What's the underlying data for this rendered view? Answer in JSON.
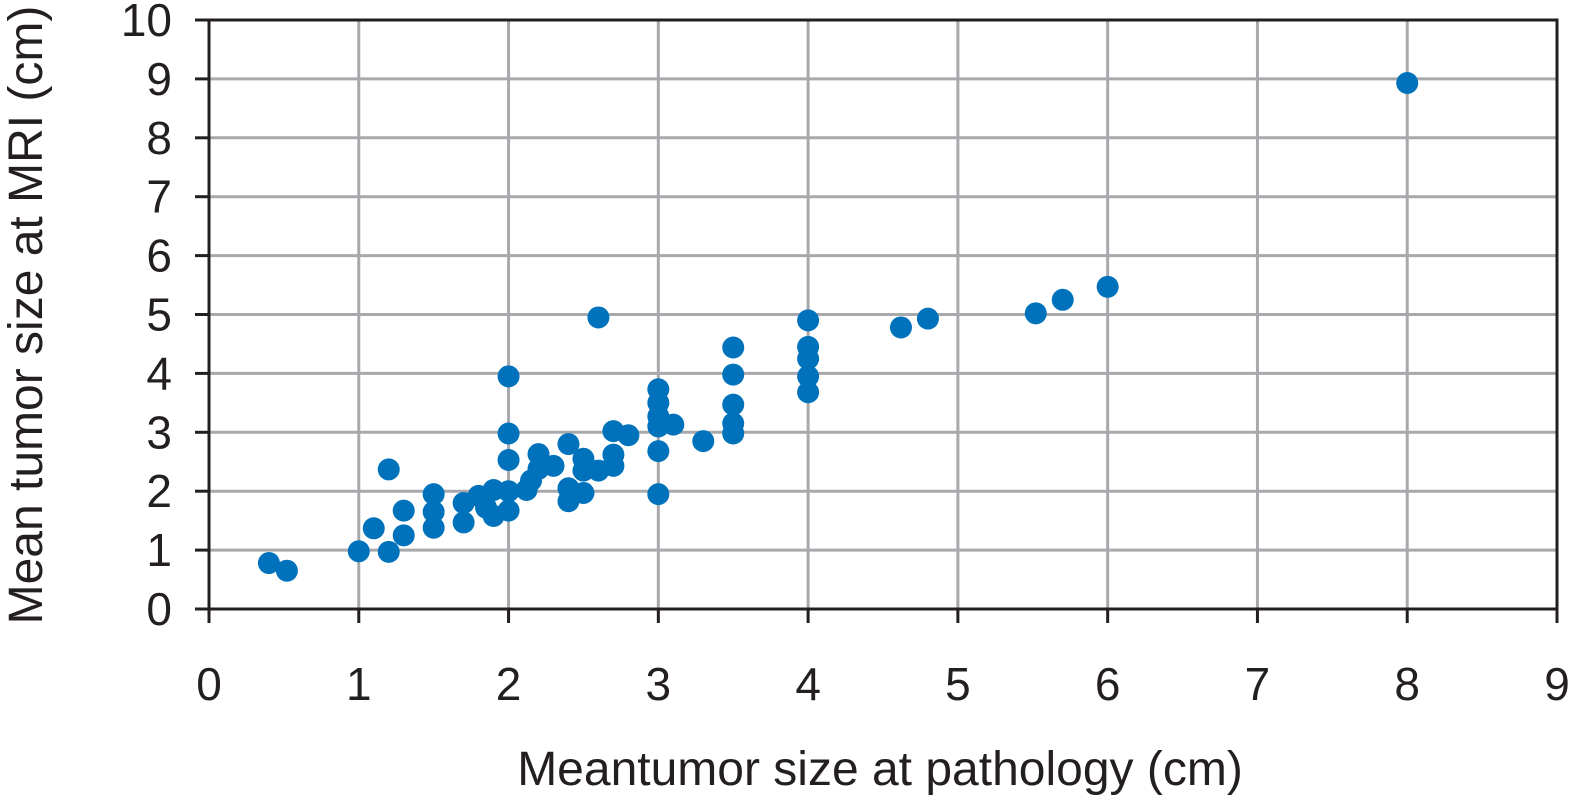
{
  "colors": {
    "point": "#0072bc",
    "grid": "#a7a9ac",
    "axis": "#231f20"
  },
  "chart_data": {
    "type": "scatter",
    "title": "",
    "xlabel": "Meantumor size at pathology (cm)",
    "ylabel": "Mean tumor size at MRI (cm)",
    "xlim": [
      0,
      9
    ],
    "ylim": [
      0,
      10
    ],
    "xticks": [
      0,
      1,
      2,
      3,
      4,
      5,
      6,
      7,
      8,
      9
    ],
    "yticks": [
      0,
      1,
      2,
      3,
      4,
      5,
      6,
      7,
      8,
      9,
      10
    ],
    "grid": true,
    "legend": "none",
    "series": [
      {
        "points": [
          [
            0.4,
            0.78
          ],
          [
            0.52,
            0.65
          ],
          [
            1.0,
            0.98
          ],
          [
            1.1,
            1.37
          ],
          [
            1.2,
            0.97
          ],
          [
            1.2,
            2.37
          ],
          [
            1.3,
            1.67
          ],
          [
            1.3,
            1.25
          ],
          [
            1.5,
            1.95
          ],
          [
            1.5,
            1.65
          ],
          [
            1.5,
            1.38
          ],
          [
            1.7,
            1.8
          ],
          [
            1.7,
            1.47
          ],
          [
            1.8,
            1.92
          ],
          [
            1.85,
            1.72
          ],
          [
            1.9,
            2.02
          ],
          [
            1.9,
            1.58
          ],
          [
            2.0,
            2.0
          ],
          [
            2.0,
            1.67
          ],
          [
            2.0,
            3.95
          ],
          [
            2.0,
            2.98
          ],
          [
            2.0,
            2.53
          ],
          [
            2.12,
            2.02
          ],
          [
            2.15,
            2.18
          ],
          [
            2.2,
            2.38
          ],
          [
            2.2,
            2.63
          ],
          [
            2.3,
            2.43
          ],
          [
            2.4,
            2.8
          ],
          [
            2.4,
            2.05
          ],
          [
            2.4,
            1.83
          ],
          [
            2.5,
            1.97
          ],
          [
            2.5,
            2.35
          ],
          [
            2.5,
            2.55
          ],
          [
            2.6,
            2.35
          ],
          [
            2.6,
            4.95
          ],
          [
            2.7,
            2.43
          ],
          [
            2.7,
            2.62
          ],
          [
            2.7,
            3.02
          ],
          [
            2.8,
            2.95
          ],
          [
            3.0,
            1.95
          ],
          [
            3.0,
            2.68
          ],
          [
            3.0,
            3.1
          ],
          [
            3.0,
            3.27
          ],
          [
            3.0,
            3.5
          ],
          [
            3.0,
            3.73
          ],
          [
            3.1,
            3.13
          ],
          [
            3.3,
            2.85
          ],
          [
            3.5,
            2.98
          ],
          [
            3.5,
            3.15
          ],
          [
            3.5,
            3.47
          ],
          [
            3.5,
            3.98
          ],
          [
            3.5,
            4.44
          ],
          [
            4.0,
            3.68
          ],
          [
            4.0,
            3.95
          ],
          [
            4.0,
            4.25
          ],
          [
            4.0,
            4.45
          ],
          [
            4.0,
            4.9
          ],
          [
            4.62,
            4.78
          ],
          [
            4.8,
            4.93
          ],
          [
            5.52,
            5.02
          ],
          [
            5.7,
            5.25
          ],
          [
            6.0,
            5.47
          ],
          [
            8.0,
            8.93
          ]
        ]
      }
    ]
  }
}
